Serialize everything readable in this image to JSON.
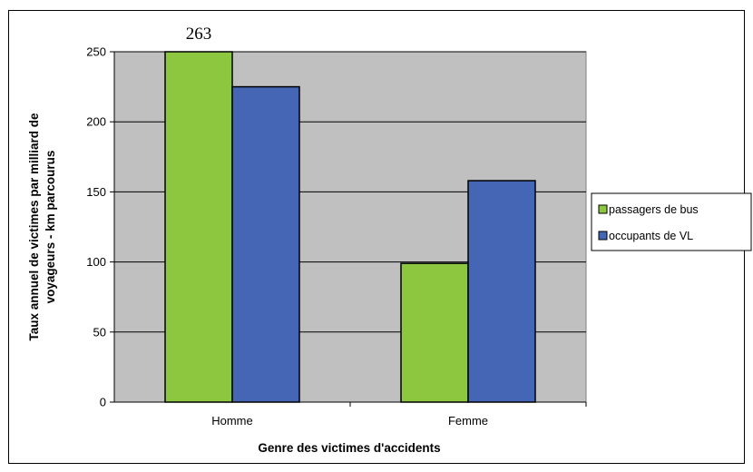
{
  "chart_data": {
    "type": "bar",
    "categories": [
      "Homme",
      "Femme"
    ],
    "series": [
      {
        "name": "passagers de bus",
        "values": [
          263,
          99
        ],
        "color": "#8dc63f"
      },
      {
        "name": "occupants de VL",
        "values": [
          225,
          158
        ],
        "color": "#4466b4"
      }
    ],
    "data_labels": [
      {
        "series": 0,
        "category": 0,
        "text": "263"
      }
    ],
    "xlabel": "Genre des victimes d'accidents",
    "ylabel_lines": [
      "Taux annuel de victimes par milliard de",
      "voyageurs - km parcourus"
    ],
    "ylim": [
      0,
      250
    ],
    "yticks": [
      0,
      50,
      100,
      150,
      200,
      250
    ],
    "grid": true,
    "legend_position": "right",
    "plot_background": "#c0c0c0"
  }
}
